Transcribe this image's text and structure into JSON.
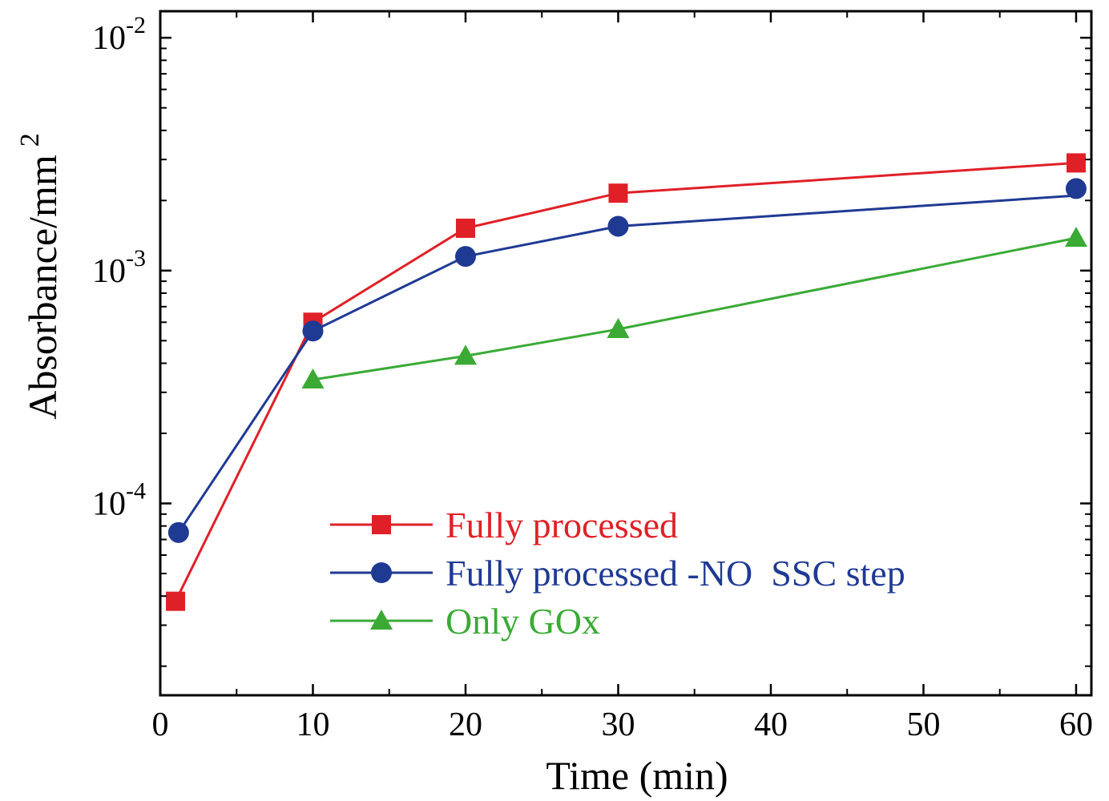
{
  "chart_data": {
    "type": "line",
    "xlabel": "Time (min)",
    "ylabel": "Absorbance/mm",
    "ylabel_sup": "2",
    "xlim": [
      0,
      61
    ],
    "ylim": [
      1.5e-05,
      0.013
    ],
    "y_scale": "log",
    "x_ticks": [
      0,
      10,
      20,
      30,
      40,
      50,
      60
    ],
    "x_tick_labels": [
      "0",
      "10",
      "20",
      "30",
      "40",
      "50",
      "60"
    ],
    "y_ticks": [
      {
        "value": 0.01,
        "base": "10",
        "exp": "-2"
      },
      {
        "value": 0.001,
        "base": "10",
        "exp": "-3"
      },
      {
        "value": 0.0001,
        "base": "10",
        "exp": "-4"
      }
    ],
    "legend_position": "lower-right",
    "series": [
      {
        "name": "Fully processed",
        "color": "#e02027",
        "marker": "square",
        "x": [
          1,
          10,
          20,
          30,
          60
        ],
        "y": [
          3.8e-05,
          0.0006,
          0.00152,
          0.00215,
          0.0029
        ]
      },
      {
        "name": "Fully processed -NO  SSC step",
        "color": "#1f3a93",
        "marker": "circle",
        "x": [
          1.2,
          10,
          20,
          30,
          60
        ],
        "y": [
          7.5e-05,
          0.00055,
          0.00115,
          0.00155,
          0.0021
        ],
        "marker_y": [
          7.5e-05,
          0.00055,
          0.00115,
          0.00155,
          0.00225
        ]
      },
      {
        "name": "Only GOx",
        "color": "#3aaa35",
        "marker": "triangle",
        "x": [
          10,
          20,
          30,
          60
        ],
        "y": [
          0.00034,
          0.00043,
          0.00056,
          0.00138
        ]
      }
    ]
  }
}
